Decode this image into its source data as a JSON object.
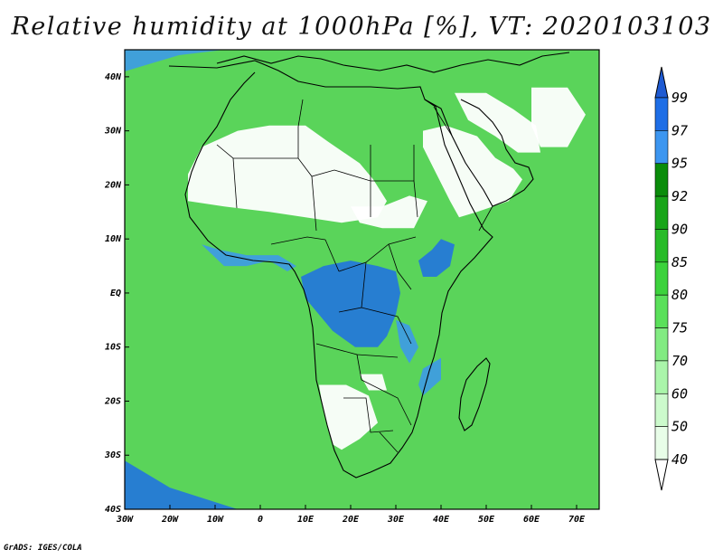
{
  "title": "Relative humidity at 1000hPa [%], VT: 2020103103",
  "credit": "GrADS: IGES/COLA",
  "map": {
    "lon_range": [
      -30,
      75
    ],
    "lat_range": [
      -40,
      45
    ],
    "lon_ticks": [
      {
        "lon": -30,
        "label": "30W"
      },
      {
        "lon": -20,
        "label": "20W"
      },
      {
        "lon": -10,
        "label": "10W"
      },
      {
        "lon": 0,
        "label": "0"
      },
      {
        "lon": 10,
        "label": "10E"
      },
      {
        "lon": 20,
        "label": "20E"
      },
      {
        "lon": 30,
        "label": "30E"
      },
      {
        "lon": 40,
        "label": "40E"
      },
      {
        "lon": 50,
        "label": "50E"
      },
      {
        "lon": 60,
        "label": "60E"
      },
      {
        "lon": 70,
        "label": "70E"
      }
    ],
    "lat_ticks": [
      {
        "lat": 40,
        "label": "40N"
      },
      {
        "lat": 30,
        "label": "30N"
      },
      {
        "lat": 20,
        "label": "20N"
      },
      {
        "lat": 10,
        "label": "10N"
      },
      {
        "lat": 0,
        "label": "EQ"
      },
      {
        "lat": -10,
        "label": "10S"
      },
      {
        "lat": -20,
        "label": "20S"
      },
      {
        "lat": -30,
        "label": "30S"
      },
      {
        "lat": -40,
        "label": "40S"
      }
    ],
    "background_color": "#5ad45a"
  },
  "colorbar": {
    "levels": [
      "99",
      "97",
      "95",
      "92",
      "90",
      "85",
      "80",
      "75",
      "70",
      "60",
      "50",
      "40"
    ],
    "colors": [
      "#1e6ee6",
      "#3c96f0",
      "#0a8c0a",
      "#19a519",
      "#28bb28",
      "#3cd23c",
      "#5ae05a",
      "#82eb82",
      "#aaf5aa",
      "#ccfacc",
      "#e8fde8"
    ],
    "top_color": "#1e5ad2",
    "bottom_color": "#ffffff"
  },
  "regions": {
    "dry": [
      {
        "name": "sahara-west",
        "color": "#ffffff",
        "lonlat": [
          [
            -13,
            27
          ],
          [
            -5,
            30
          ],
          [
            2,
            31
          ],
          [
            10,
            31
          ],
          [
            15,
            28
          ],
          [
            22,
            24
          ],
          [
            25,
            21
          ],
          [
            28,
            17
          ],
          [
            26,
            14
          ],
          [
            18,
            13
          ],
          [
            10,
            14
          ],
          [
            2,
            15
          ],
          [
            -8,
            16
          ],
          [
            -16,
            17
          ],
          [
            -16,
            22
          ]
        ]
      },
      {
        "name": "arabia",
        "color": "#ffffff",
        "lonlat": [
          [
            36,
            30
          ],
          [
            41,
            31
          ],
          [
            48,
            29
          ],
          [
            52,
            25
          ],
          [
            56,
            23
          ],
          [
            58,
            21
          ],
          [
            55,
            17
          ],
          [
            48,
            15
          ],
          [
            44,
            14
          ],
          [
            42,
            17
          ],
          [
            39,
            22
          ],
          [
            36,
            27
          ]
        ]
      },
      {
        "name": "middle-east",
        "color": "#ffffff",
        "lonlat": [
          [
            43,
            37
          ],
          [
            50,
            37
          ],
          [
            56,
            34
          ],
          [
            61,
            31
          ],
          [
            62,
            26
          ],
          [
            57,
            26
          ],
          [
            52,
            29
          ],
          [
            46,
            32
          ]
        ]
      },
      {
        "name": "iran-east",
        "color": "#ffffff",
        "lonlat": [
          [
            60,
            38
          ],
          [
            68,
            38
          ],
          [
            72,
            33
          ],
          [
            68,
            27
          ],
          [
            62,
            27
          ],
          [
            60,
            31
          ]
        ]
      },
      {
        "name": "namibia-kalahari",
        "color": "#ffffff",
        "lonlat": [
          [
            13,
            -17
          ],
          [
            19,
            -17
          ],
          [
            24,
            -19
          ],
          [
            26,
            -24
          ],
          [
            22,
            -27
          ],
          [
            18,
            -29
          ],
          [
            16,
            -28
          ],
          [
            14,
            -22
          ]
        ]
      },
      {
        "name": "angola-patch",
        "color": "#ffffff",
        "lonlat": [
          [
            22,
            -15
          ],
          [
            27,
            -15
          ],
          [
            28,
            -18
          ],
          [
            24,
            -18
          ]
        ]
      },
      {
        "name": "sahel-east",
        "color": "#ffffff",
        "lonlat": [
          [
            20,
            16
          ],
          [
            27,
            16
          ],
          [
            33,
            18
          ],
          [
            37,
            17
          ],
          [
            34,
            12
          ],
          [
            27,
            12
          ],
          [
            22,
            13
          ]
        ]
      }
    ],
    "humid": [
      {
        "name": "congo",
        "color": "#1e6ee6",
        "lonlat": [
          [
            9,
            3
          ],
          [
            14,
            5
          ],
          [
            20,
            6
          ],
          [
            26,
            5
          ],
          [
            30,
            4
          ],
          [
            31,
            0
          ],
          [
            30,
            -4
          ],
          [
            28,
            -8
          ],
          [
            26,
            -10
          ],
          [
            21,
            -10
          ],
          [
            16,
            -7
          ],
          [
            13,
            -4
          ],
          [
            10,
            -1
          ]
        ]
      },
      {
        "name": "gulf-guinea",
        "color": "#3c96f0",
        "lonlat": [
          [
            -13,
            9
          ],
          [
            -8,
            5
          ],
          [
            -3,
            5
          ],
          [
            2,
            6
          ],
          [
            6,
            4
          ],
          [
            8,
            5
          ],
          [
            4,
            7
          ],
          [
            -3,
            7
          ],
          [
            -9,
            8
          ]
        ]
      },
      {
        "name": "ethiopia",
        "color": "#1e6ee6",
        "lonlat": [
          [
            35,
            6
          ],
          [
            38,
            8
          ],
          [
            40,
            10
          ],
          [
            43,
            9
          ],
          [
            42,
            5
          ],
          [
            39,
            3
          ],
          [
            36,
            3
          ]
        ]
      },
      {
        "name": "tanzania",
        "color": "#3c96f0",
        "lonlat": [
          [
            30,
            -5
          ],
          [
            33,
            -6
          ],
          [
            35,
            -10
          ],
          [
            33,
            -13
          ],
          [
            31,
            -10
          ]
        ]
      },
      {
        "name": "mozambique",
        "color": "#3c96f0",
        "lonlat": [
          [
            36,
            -14
          ],
          [
            40,
            -12
          ],
          [
            40,
            -16
          ],
          [
            36,
            -19
          ],
          [
            35,
            -17
          ]
        ]
      },
      {
        "name": "southern-ocean",
        "color": "#1e6ee6",
        "lonlat": [
          [
            -30,
            -31
          ],
          [
            -20,
            -36
          ],
          [
            -5,
            -40
          ],
          [
            -30,
            -40
          ]
        ]
      },
      {
        "name": "mediterranean-w",
        "color": "#3c96f0",
        "lonlat": [
          [
            -30,
            41
          ],
          [
            -18,
            44
          ],
          [
            -8,
            45
          ],
          [
            -22,
            45
          ],
          [
            -30,
            45
          ]
        ]
      }
    ]
  }
}
